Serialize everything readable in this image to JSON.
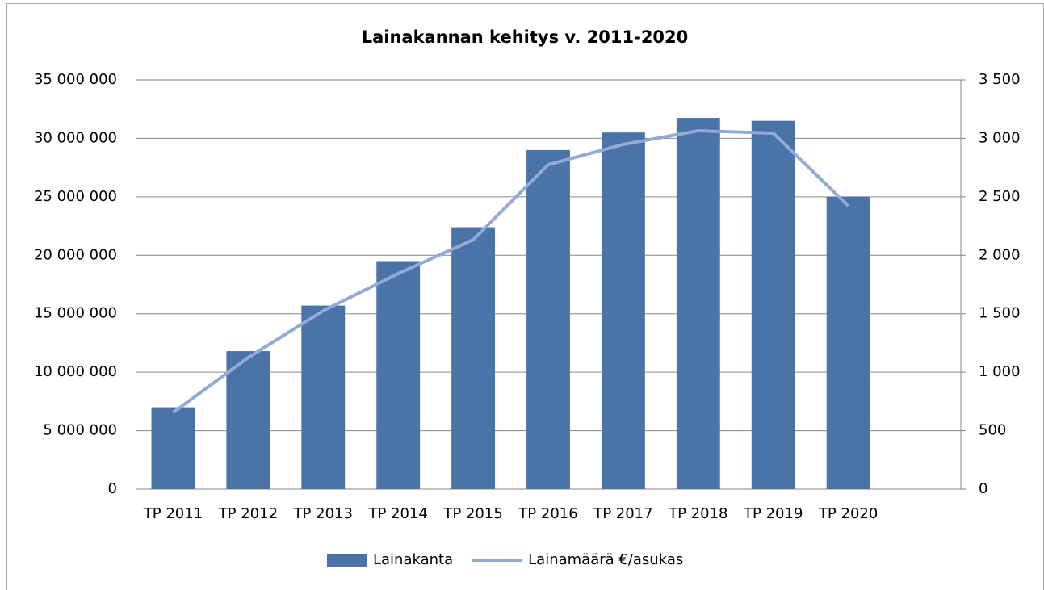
{
  "chart_data": {
    "type": "bar",
    "title": "Lainakannan kehitys v. 2011-2020",
    "categories": [
      "TP 2011",
      "TP 2012",
      "TP 2013",
      "TP 2014",
      "TP 2015",
      "TP 2016",
      "TP 2017",
      "TP 2018",
      "TP 2019",
      "TP 2020",
      null
    ],
    "series": [
      {
        "name": "Lainakanta",
        "type": "bar",
        "color": "#4a73a8",
        "values": [
          7000000,
          11800000,
          15700000,
          19500000,
          22400000,
          29000000,
          30500000,
          31750000,
          31500000,
          25000000,
          null
        ]
      },
      {
        "name": "Lainamäärä €/asukas",
        "type": "line",
        "axis": "y2",
        "color": "#92aad6",
        "values": [
          655,
          1125,
          1526,
          1843,
          2133,
          2775,
          2948,
          3065,
          3044,
          2423,
          null
        ]
      }
    ],
    "ylim": [
      0,
      35000000
    ],
    "yticks": [
      0,
      {
        "value": 5000000,
        "label": "5 000 000"
      },
      {
        "value": 10000000,
        "label": "10 000 000"
      },
      {
        "value": 15000000,
        "label": "15 000 000"
      },
      {
        "value": 20000000,
        "label": "20 000 000"
      },
      {
        "value": 25000000,
        "label": "25 000 000"
      },
      {
        "value": 30000000,
        "label": "30 000 000"
      },
      {
        "value": 35000000,
        "label": "35 000 000"
      }
    ],
    "y2lim": [
      0,
      3500
    ],
    "y2ticks": [
      0,
      500,
      {
        "value": 1000,
        "label": "1 000"
      },
      {
        "value": 1500,
        "label": "1 500"
      },
      {
        "value": 2000,
        "label": "2 000"
      },
      {
        "value": 2500,
        "label": "2 500"
      },
      {
        "value": 3000,
        "label": "3 000"
      },
      {
        "value": 3500,
        "label": "3 500"
      }
    ],
    "grid": true,
    "legend": "bottom"
  }
}
